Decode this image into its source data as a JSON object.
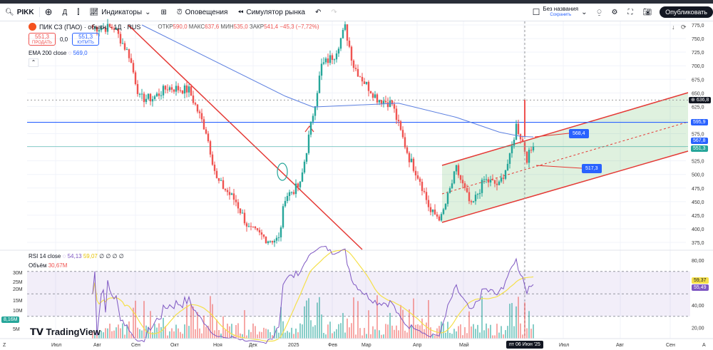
{
  "toolbar": {
    "symbol": "PIKK",
    "interval": "Д",
    "indicators": "Индикаторы",
    "alerts": "Оповещения",
    "simulator": "Симулятор рынка",
    "layout_name": "Без названия",
    "save": "Сохранить",
    "publish": "Опубликовать"
  },
  "legend": {
    "title": "ПИК СЗ (ПАО) · обыкн. · 1Д · RUS",
    "open_lbl": "ОТКР",
    "open": "590,0",
    "high_lbl": "МАКС",
    "high": "637,6",
    "low_lbl": "МИН",
    "low": "535,0",
    "close_lbl": "ЗАКР",
    "close": "541,4",
    "change": "−45,3 (−7,72%)"
  },
  "trade": {
    "sell_price": "551,3",
    "sell": "ПРОДАТЬ",
    "spread": "0,0",
    "buy_price": "551,3",
    "buy": "КУПИТЬ"
  },
  "ema": {
    "label": "EMA 200 close",
    "value": "569,0"
  },
  "rsi": {
    "label": "RSI 14 close",
    "value": "54,13",
    "ma": "59,07",
    "extra": "∅ ∅ ∅ ∅"
  },
  "volume": {
    "label": "Объём",
    "value": "30,67M"
  },
  "brand": "TradingView",
  "price_axis": [
    "775,0",
    "750,0",
    "725,0",
    "700,0",
    "675,0",
    "650,0",
    "625,0",
    "575,0",
    "525,0",
    "500,0",
    "475,0",
    "450,0",
    "425,0",
    "400,0",
    "375,0"
  ],
  "price_tags": {
    "last": "636,8",
    "hline": "595,9",
    "ema": "567,8",
    "current": "551,3"
  },
  "annotations": {
    "upper": "568,4",
    "mid": "517,3"
  },
  "rsi_axis": [
    "80,00",
    "40,00",
    "20,00"
  ],
  "rsi_tags": {
    "ma": "59,37",
    "rsi": "55,49"
  },
  "vol_axis": [
    "30M",
    "25M",
    "20M",
    "15M",
    "10M",
    "5M"
  ],
  "vol_tag": "8,16M",
  "time_axis": [
    "Июл",
    "Авг",
    "Сен",
    "Окт",
    "Ноя",
    "Дек",
    "2025",
    "Фев",
    "Мар",
    "Апр",
    "Май",
    "Июл",
    "Авг",
    "Сен"
  ],
  "crosshair_date": "пт 06 Июн '25",
  "colors": {
    "up": "#26a69a",
    "down": "#ef5350",
    "ema": "#5b7fe0",
    "hline": "#2962ff",
    "channel": "#e53935"
  },
  "chart_data": {
    "type": "candlestick",
    "price_path": [
      [
        0,
        770
      ],
      [
        10,
        770
      ],
      [
        17,
        720
      ],
      [
        22,
        640
      ],
      [
        28,
        640
      ],
      [
        35,
        660
      ],
      [
        45,
        655
      ],
      [
        53,
        580
      ],
      [
        58,
        490
      ],
      [
        67,
        450
      ],
      [
        73,
        400
      ],
      [
        82,
        380
      ],
      [
        87,
        380
      ],
      [
        90,
        460
      ],
      [
        97,
        480
      ],
      [
        102,
        590
      ],
      [
        107,
        700
      ],
      [
        113,
        720
      ],
      [
        118,
        770
      ],
      [
        122,
        700
      ],
      [
        127,
        670
      ],
      [
        133,
        640
      ],
      [
        140,
        630
      ],
      [
        143,
        590
      ],
      [
        148,
        530
      ],
      [
        153,
        490
      ],
      [
        158,
        430
      ],
      [
        163,
        420
      ],
      [
        170,
        510
      ],
      [
        177,
        440
      ],
      [
        183,
        490
      ],
      [
        190,
        480
      ],
      [
        195,
        530
      ],
      [
        198,
        590
      ],
      [
        201,
        560
      ],
      [
        203,
        530
      ],
      [
        206,
        551
      ]
    ],
    "ema_path": [
      [
        23,
        775
      ],
      [
        90,
        644
      ],
      [
        103,
        624
      ],
      [
        143,
        631
      ],
      [
        170,
        605
      ],
      [
        190,
        578
      ],
      [
        200,
        570
      ],
      [
        206,
        569
      ]
    ],
    "hline": 595.9,
    "last_high": 636.8,
    "current": 551.3,
    "ylim": [
      375,
      775
    ]
  }
}
